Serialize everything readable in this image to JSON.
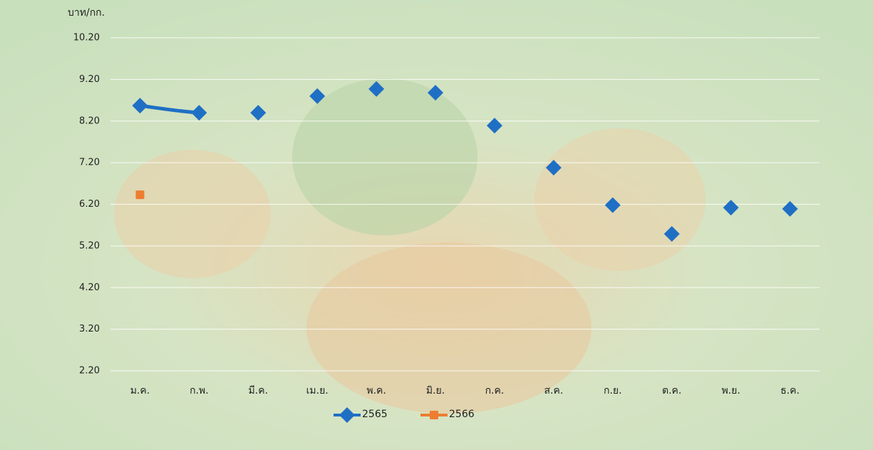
{
  "chart_data": {
    "type": "line",
    "y_label": "บาท/กก.",
    "categories": [
      "ม.ค.",
      "ก.พ.",
      "มี.ค.",
      "เม.ย.",
      "พ.ค.",
      "มิ.ย.",
      "ก.ค.",
      "ส.ค.",
      "ก.ย.",
      "ต.ค.",
      "พ.ย.",
      "ธ.ค."
    ],
    "series": [
      {
        "name": "2565",
        "color": "#1f6fc5",
        "marker": "diamond",
        "smooth": true,
        "values": [
          8.57,
          8.4,
          8.4,
          8.8,
          8.97,
          8.88,
          8.09,
          7.08,
          6.18,
          5.49,
          6.12,
          6.09
        ]
      },
      {
        "name": "2566",
        "color": "#ed7d31",
        "marker": "square",
        "smooth": true,
        "values": [
          6.43,
          null,
          null,
          null,
          null,
          null,
          null,
          null,
          null,
          null,
          null,
          null
        ]
      }
    ],
    "ylim": [
      2.2,
      10.2
    ],
    "yticks": [
      {
        "value": 2.2,
        "label": "2.20"
      },
      {
        "value": 3.2,
        "label": "3.20"
      },
      {
        "value": 4.2,
        "label": "4.20"
      },
      {
        "value": 5.2,
        "label": "5.20"
      },
      {
        "value": 6.2,
        "label": "6.20"
      },
      {
        "value": 7.2,
        "label": "7.20"
      },
      {
        "value": 8.2,
        "label": "8.20"
      },
      {
        "value": 9.2,
        "label": "9.20"
      },
      {
        "value": 10.2,
        "label": "10.20"
      }
    ],
    "grid": true,
    "legend": "bottom"
  }
}
